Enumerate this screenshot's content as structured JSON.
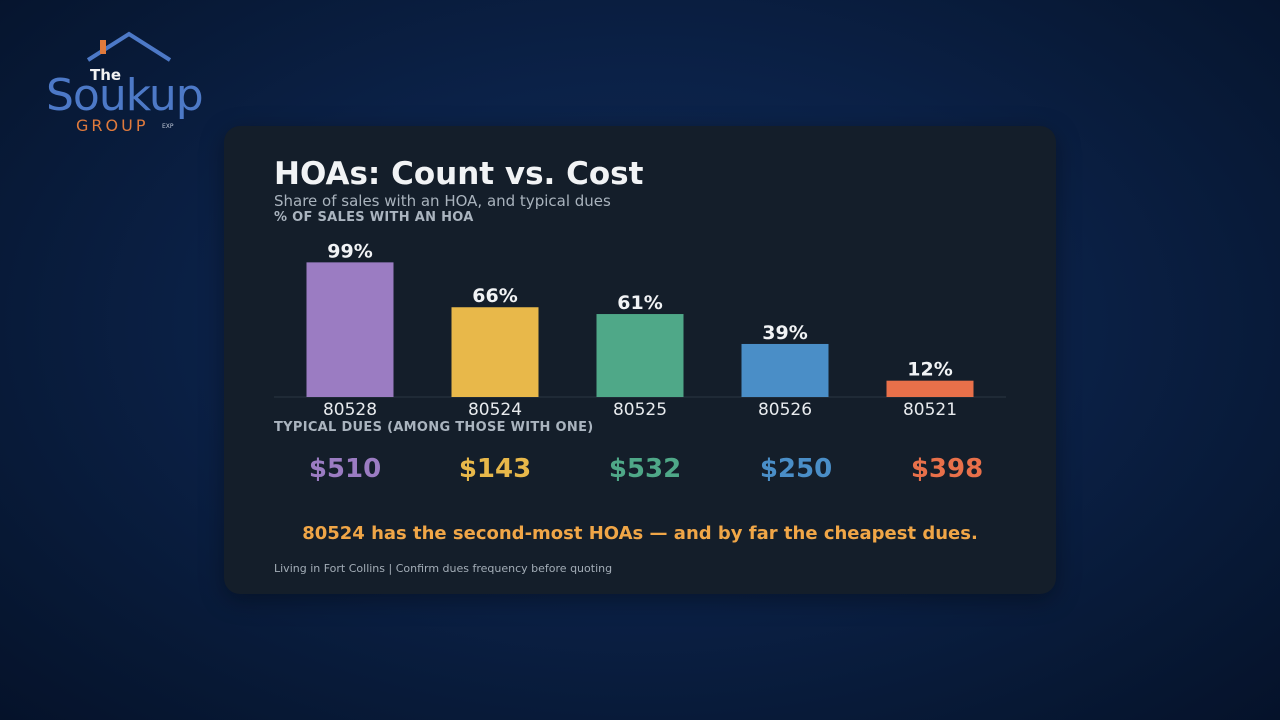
{
  "logo": {
    "the": "The",
    "name": "Soukup",
    "group": "GROUP",
    "exp": "EXP"
  },
  "title": "HOAs: Count vs. Cost",
  "subtitle": "Share of sales with an HOA, and typical dues",
  "section_share_label": "% OF SALES WITH AN HOA",
  "section_dues_label": "TYPICAL DUES (AMONG THOSE WITH ONE)",
  "callout": "80524 has the second-most HOAs — and by far the cheapest dues.",
  "footer": "Living in Fort Collins  |  Confirm dues frequency before quoting",
  "colors": {
    "background": "#0b2147",
    "card": "#141e2a",
    "callout": "#f0a647"
  },
  "chart_data": {
    "type": "bar",
    "title": "HOAs: Count vs. Cost",
    "ylabel": "% OF SALES WITH AN HOA",
    "ylim": [
      0,
      100
    ],
    "grid": false,
    "categories": [
      "80528",
      "80524",
      "80525",
      "80526",
      "80521"
    ],
    "values": [
      99,
      66,
      61,
      39,
      12
    ],
    "value_labels": [
      "99%",
      "66%",
      "61%",
      "39%",
      "12%"
    ],
    "dues": [
      "$510",
      "$143",
      "$532",
      "$250",
      "$398"
    ],
    "colors": [
      "#9b7cc2",
      "#e8b84a",
      "#4fa888",
      "#4a8ec7",
      "#e8704a"
    ]
  }
}
